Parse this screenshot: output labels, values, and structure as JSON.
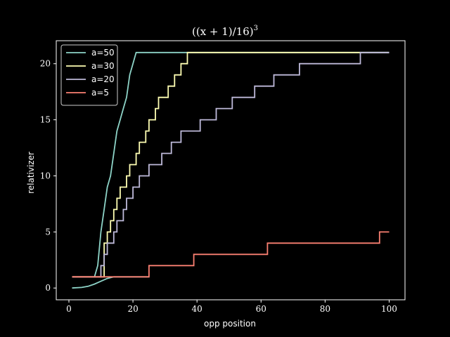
{
  "chart_data": {
    "type": "line",
    "title": "((x + 1)/16)",
    "title_superscript": "3",
    "xlabel": "opp position",
    "ylabel": "relativizer",
    "xlim": [
      -3.95,
      104.95
    ],
    "ylim": [
      -1.05,
      22.05
    ],
    "xticks": [
      0,
      20,
      40,
      60,
      80,
      100
    ],
    "yticks": [
      0,
      5,
      10,
      15,
      20
    ],
    "grid": false,
    "legend_position": "top-left",
    "background": "#000000",
    "series": [
      {
        "name": "a=50",
        "color": "#8dd3c7",
        "points": [
          [
            1,
            0
          ],
          [
            4,
            0.05
          ],
          [
            6,
            0.15
          ],
          [
            8,
            0.35
          ],
          [
            10,
            0.6
          ],
          [
            12,
            0.85
          ],
          [
            14,
            1
          ],
          [
            15,
            1
          ],
          [
            16,
            1
          ],
          [
            17,
            1
          ],
          [
            18,
            1
          ],
          [
            19,
            1
          ],
          [
            20,
            1
          ],
          [
            21,
            1
          ],
          [
            22,
            1
          ],
          [
            23,
            1
          ],
          [
            24,
            1
          ],
          [
            25,
            1
          ]
        ],
        "overlay": [
          [
            8,
            1
          ],
          [
            9,
            2
          ],
          [
            10,
            5
          ],
          [
            11,
            7
          ],
          [
            12,
            9
          ],
          [
            13,
            10
          ],
          [
            14,
            12
          ],
          [
            15,
            14
          ],
          [
            16,
            15
          ],
          [
            17,
            16
          ],
          [
            18,
            17
          ],
          [
            19,
            19
          ],
          [
            20,
            20
          ],
          [
            21,
            21
          ],
          [
            30,
            21
          ],
          [
            40,
            21
          ],
          [
            60,
            21
          ],
          [
            80,
            21
          ],
          [
            100,
            21
          ]
        ]
      },
      {
        "name": "a=30",
        "color": "#ffffb3",
        "steps": [
          [
            1,
            1
          ],
          [
            11,
            4
          ],
          [
            12,
            5
          ],
          [
            13,
            6
          ],
          [
            14,
            7
          ],
          [
            15,
            8
          ],
          [
            16,
            9
          ],
          [
            18,
            10
          ],
          [
            19,
            11
          ],
          [
            21,
            12
          ],
          [
            22,
            13
          ],
          [
            23,
            13
          ],
          [
            24,
            14
          ],
          [
            25,
            15
          ],
          [
            27,
            16
          ],
          [
            28,
            17
          ],
          [
            30,
            17
          ],
          [
            31,
            18
          ],
          [
            33,
            19
          ],
          [
            35,
            20
          ],
          [
            37,
            21
          ],
          [
            41,
            21
          ],
          [
            100,
            21
          ]
        ]
      },
      {
        "name": "a=20",
        "color": "#bebada",
        "steps": [
          [
            1,
            1
          ],
          [
            9,
            1
          ],
          [
            10,
            2
          ],
          [
            11,
            3
          ],
          [
            12,
            4
          ],
          [
            14,
            5
          ],
          [
            15,
            6
          ],
          [
            17,
            7
          ],
          [
            18,
            8
          ],
          [
            20,
            9
          ],
          [
            22,
            10
          ],
          [
            25,
            11
          ],
          [
            29,
            12
          ],
          [
            32,
            13
          ],
          [
            35,
            14
          ],
          [
            41,
            15
          ],
          [
            46,
            16
          ],
          [
            51,
            17
          ],
          [
            58,
            18
          ],
          [
            64,
            19
          ],
          [
            72,
            20
          ],
          [
            80,
            20
          ],
          [
            91,
            21
          ],
          [
            100,
            21
          ]
        ]
      },
      {
        "name": "a=5",
        "color": "#fb8072",
        "steps": [
          [
            1,
            1
          ],
          [
            24,
            1
          ],
          [
            25,
            2
          ],
          [
            39,
            3
          ],
          [
            61,
            3
          ],
          [
            62,
            4
          ],
          [
            96,
            4
          ],
          [
            97,
            5
          ],
          [
            100,
            5
          ]
        ]
      }
    ]
  }
}
